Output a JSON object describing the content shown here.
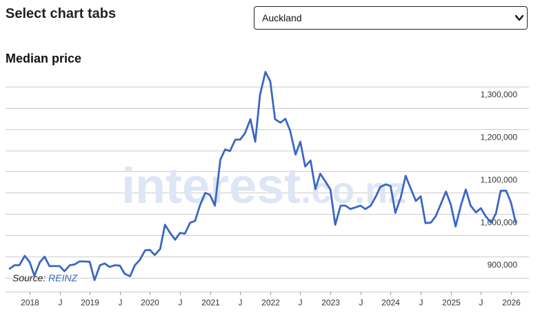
{
  "header": {
    "title": "Select chart tabs",
    "region_select": {
      "value": "Auckland",
      "icon": "chevron-down-icon"
    }
  },
  "colors": {
    "line": "#3a66c4",
    "grid": "#cccccc",
    "watermark": "#dde6f5"
  },
  "watermark": {
    "text_main": "interest",
    "text_suffix": ".co.nz"
  },
  "chart_data": {
    "type": "line",
    "title": "Median price",
    "source_label": "Source:",
    "source_name": "REINZ",
    "ylim": [
      818000,
      1335000
    ],
    "yticks": [
      900000,
      1000000,
      1100000,
      1200000,
      1300000
    ],
    "ytick_labels": [
      "900,000",
      "1,000,000",
      "1,100,000",
      "1,200,000",
      "1,300,000"
    ],
    "xlim": [
      2017.6,
      2026.3
    ],
    "xticks": [
      2018,
      2018.5,
      2019,
      2019.5,
      2020,
      2020.5,
      2021,
      2021.5,
      2022,
      2022.5,
      2023,
      2023.5,
      2024,
      2024.5,
      2025,
      2025.5,
      2026
    ],
    "xtick_labels": [
      "2018",
      "J",
      "2019",
      "J",
      "2020",
      "J",
      "2021",
      "J",
      "2022",
      "J",
      "2023",
      "J",
      "2024",
      "J",
      "2025",
      "J",
      "2026"
    ],
    "grid": true,
    "series": [
      {
        "x": [
          2017.67,
          2017.75,
          2017.83,
          2017.92,
          2018.0,
          2018.08,
          2018.17,
          2018.25,
          2018.33,
          2018.42,
          2018.5,
          2018.58,
          2018.67,
          2018.75,
          2018.83,
          2018.92,
          2019.0,
          2019.08,
          2019.17,
          2019.25,
          2019.33,
          2019.42,
          2019.5,
          2019.58,
          2019.67,
          2019.75,
          2019.83,
          2019.92,
          2020.0,
          2020.08,
          2020.17,
          2020.25,
          2020.33,
          2020.42,
          2020.5,
          2020.58,
          2020.67,
          2020.75,
          2020.83,
          2020.92,
          2021.0,
          2021.08,
          2021.17,
          2021.25,
          2021.33,
          2021.42,
          2021.5,
          2021.58,
          2021.67,
          2021.75,
          2021.83,
          2021.92,
          2022.0,
          2022.08,
          2022.17,
          2022.25,
          2022.33,
          2022.42,
          2022.5,
          2022.58,
          2022.67,
          2022.75,
          2022.83,
          2022.92,
          2023.0,
          2023.08,
          2023.17,
          2023.25,
          2023.33,
          2023.42,
          2023.5,
          2023.58,
          2023.67,
          2023.75,
          2023.83,
          2023.92,
          2024.0,
          2024.08,
          2024.17,
          2024.25,
          2024.33,
          2024.42,
          2024.5,
          2024.58,
          2024.67,
          2024.75,
          2024.83,
          2024.92,
          2025.0,
          2025.08,
          2025.17,
          2025.25,
          2025.33,
          2025.42,
          2025.5,
          2025.58,
          2025.67,
          2025.75,
          2025.83,
          2025.92,
          2026.0,
          2026.08
        ],
        "y": [
          872000,
          880000,
          880000,
          902000,
          888000,
          855000,
          887000,
          900000,
          878000,
          878000,
          878000,
          866000,
          880000,
          882000,
          889000,
          889000,
          888000,
          845000,
          880000,
          884000,
          876000,
          880000,
          879000,
          860000,
          854000,
          880000,
          892000,
          915000,
          916000,
          904000,
          918000,
          975000,
          957000,
          940000,
          956000,
          954000,
          980000,
          984000,
          1020000,
          1050000,
          1045000,
          1020000,
          1128000,
          1152000,
          1148000,
          1175000,
          1175000,
          1190000,
          1223000,
          1170000,
          1280000,
          1334000,
          1312000,
          1223000,
          1215000,
          1224000,
          1196000,
          1140000,
          1170000,
          1112000,
          1126000,
          1059000,
          1095000,
          1076000,
          1058000,
          975000,
          1020000,
          1020000,
          1012000,
          1016000,
          1020000,
          1012000,
          1020000,
          1040000,
          1064000,
          1070000,
          1066000,
          1003000,
          1040000,
          1090000,
          1062000,
          1031000,
          1042000,
          979000,
          980000,
          995000,
          1022000,
          1053000,
          1023000,
          971000,
          1021000,
          1058000,
          1020000,
          1004000,
          1014000,
          995000,
          980000,
          1001000,
          1055000,
          1055000,
          1028000,
          980000
        ]
      }
    ]
  }
}
